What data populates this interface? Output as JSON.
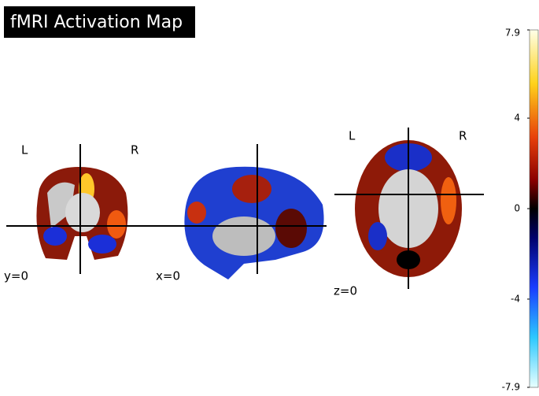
{
  "title": "fMRI Activation Map",
  "views": [
    {
      "label": "y=0",
      "left": "L",
      "right": "R"
    },
    {
      "label": "x=0"
    },
    {
      "label": "z=0",
      "left": "L",
      "right": "R"
    }
  ],
  "colorbar": {
    "lim": [
      -7.9,
      7.9
    ],
    "ticks": [
      7.9,
      4,
      0,
      -4,
      -7.9
    ]
  }
}
